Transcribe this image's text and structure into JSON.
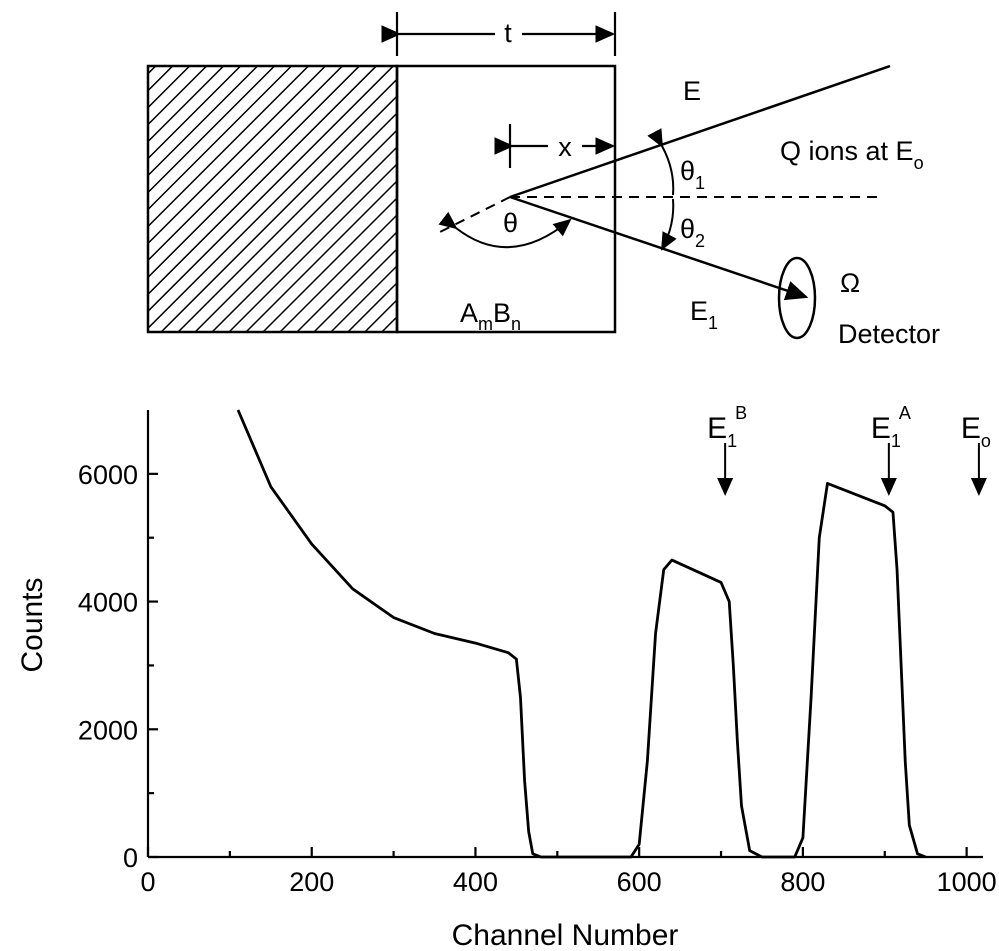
{
  "diagram": {
    "thickness": "t",
    "depth": "x",
    "energy": "E",
    "ion_label": {
      "text": "Q ions at E",
      "sub": "o"
    },
    "theta1": {
      "text": "θ",
      "sub": "1"
    },
    "theta2": {
      "text": "θ",
      "sub": "2"
    },
    "theta": "θ",
    "compound": {
      "a": "A",
      "m": "m",
      "b": "B",
      "n": "n"
    },
    "solid_angle": "Ω",
    "exit_energy": {
      "text": "E",
      "sub": "1"
    },
    "detector": "Detector"
  },
  "chart_data": {
    "type": "line",
    "x_label": "Channel Number",
    "y_label": "Counts",
    "xlim": [
      0,
      1020
    ],
    "ylim": [
      0,
      7000
    ],
    "xticks": [
      0,
      200,
      400,
      600,
      800,
      1000
    ],
    "yticks": [
      0,
      2000,
      4000,
      6000
    ],
    "series": [
      {
        "color": "#000000",
        "x": [
          110,
          150,
          200,
          250,
          300,
          350,
          400,
          440,
          450,
          455,
          460,
          465,
          470,
          480,
          590,
          600,
          610,
          620,
          630,
          640,
          700,
          710,
          715,
          720,
          725,
          735,
          750,
          790,
          800,
          810,
          820,
          830,
          900,
          910,
          915,
          920,
          925,
          930,
          940,
          950
        ],
        "values": [
          7000,
          5800,
          4900,
          4200,
          3750,
          3500,
          3350,
          3200,
          3100,
          2500,
          1200,
          400,
          50,
          0,
          0,
          200,
          1500,
          3500,
          4500,
          4650,
          4300,
          4000,
          3000,
          1800,
          800,
          100,
          0,
          0,
          300,
          2500,
          5000,
          5850,
          5500,
          5400,
          4500,
          3000,
          1500,
          500,
          50,
          0
        ]
      }
    ],
    "annotations": [
      {
        "text": "E",
        "sub": "1",
        "sup": "B",
        "x": 705
      },
      {
        "text": "E",
        "sub": "1",
        "sup": "A",
        "x": 905
      },
      {
        "text": "E",
        "sub": "o",
        "x": 1015
      }
    ]
  }
}
